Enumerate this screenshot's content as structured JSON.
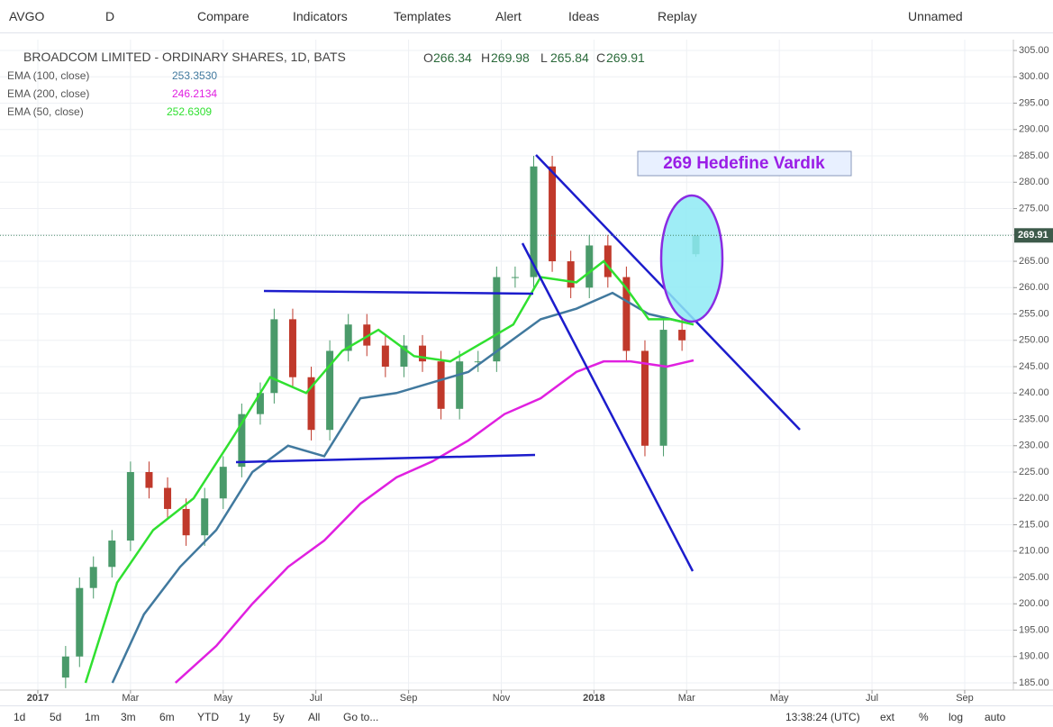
{
  "toolbar": {
    "symbol": "AVGO",
    "interval": "D",
    "items": [
      "Compare",
      "Indicators",
      "Templates",
      "Alert",
      "Ideas",
      "Replay"
    ],
    "layout": "Unnamed"
  },
  "legend": {
    "title": "BROADCOM LIMITED - ORDINARY SHARES, 1D, BATS",
    "ohlc": [
      {
        "label": "O",
        "value": "266.34"
      },
      {
        "label": "H",
        "value": "269.98"
      },
      {
        "label": "L",
        "value": "265.84"
      },
      {
        "label": "C",
        "value": "269.91"
      }
    ],
    "indicators": [
      {
        "name": "EMA (100, close)",
        "value": "253.3530",
        "color": "#41799e"
      },
      {
        "name": "EMA (200, close)",
        "value": "246.2134",
        "color": "#e020e0"
      },
      {
        "name": "EMA (50, close)",
        "value": "252.6309",
        "color": "#30e030"
      }
    ]
  },
  "chart_data": {
    "type": "candlestick",
    "x": [
      0.6,
      0.9,
      1.2,
      1.6,
      2.0,
      2.4,
      2.8,
      3.2,
      3.6,
      4.0,
      4.4,
      4.8,
      5.1,
      5.5,
      5.9,
      6.3,
      6.7,
      7.1,
      7.5,
      7.9,
      8.3,
      8.7,
      9.1,
      9.5,
      9.9,
      10.3,
      10.7,
      11.1,
      11.5,
      11.9,
      12.3,
      12.7,
      13.1,
      13.5,
      13.9,
      14.2
    ],
    "open": [
      186,
      190,
      203,
      207,
      212,
      225,
      222,
      218,
      213,
      220,
      226,
      236,
      240,
      254,
      243,
      233,
      248,
      253,
      249,
      245,
      249,
      246,
      237,
      246,
      246,
      262,
      262,
      283,
      265,
      260,
      268,
      262,
      248,
      230,
      252,
      266.34
    ],
    "high": [
      192,
      205,
      209,
      214,
      227,
      227,
      224,
      220,
      222,
      228,
      238,
      242,
      256,
      256,
      245,
      250,
      255,
      255,
      251,
      251,
      251,
      248,
      248,
      248,
      264,
      264,
      285,
      285,
      267,
      270,
      270,
      264,
      250,
      254,
      254,
      269.98
    ],
    "low": [
      184,
      188,
      201,
      205,
      210,
      220,
      216,
      211,
      211,
      218,
      224,
      234,
      238,
      241,
      231,
      231,
      246,
      247,
      243,
      243,
      244,
      235,
      235,
      244,
      244,
      260,
      260,
      263,
      258,
      258,
      260,
      246,
      228,
      228,
      248,
      265.84
    ],
    "close": [
      190,
      203,
      207,
      212,
      225,
      222,
      218,
      213,
      220,
      226,
      236,
      240,
      254,
      243,
      233,
      248,
      253,
      249,
      245,
      249,
      246,
      237,
      246,
      246,
      262,
      262,
      283,
      265,
      260,
      268,
      262,
      248,
      230,
      252,
      250,
      269.91
    ],
    "up_color": "#4a9a6a",
    "down_color": "#c0392b",
    "series": [
      {
        "name": "EMA (100, close)",
        "color": "#41799e",
        "x": [
          1.61,
          2.29,
          3.07,
          3.85,
          4.63,
          5.4,
          6.18,
          6.96,
          7.74,
          8.51,
          9.29,
          10.07,
          10.85,
          11.62,
          12.4,
          13.18,
          13.96
        ],
        "values": [
          185,
          198,
          207,
          214,
          225,
          230,
          228,
          239,
          240,
          242,
          244,
          249,
          254,
          256,
          259,
          255,
          253.4
        ]
      },
      {
        "name": "EMA (200, close)",
        "color": "#e020e0",
        "x": [
          2.97,
          3.85,
          4.63,
          5.4,
          6.18,
          6.96,
          7.74,
          8.51,
          9.29,
          10.07,
          10.85,
          11.62,
          12.21,
          12.79,
          13.57,
          14.15
        ],
        "values": [
          185,
          192,
          200,
          207,
          212,
          219,
          224,
          227,
          231,
          236,
          239,
          244,
          246,
          246,
          245,
          246.2
        ]
      },
      {
        "name": "EMA (50, close)",
        "color": "#30e030",
        "x": [
          1.03,
          1.71,
          2.49,
          3.36,
          4.24,
          5.01,
          5.79,
          6.57,
          7.35,
          8.12,
          8.9,
          9.68,
          10.26,
          10.85,
          11.62,
          12.21,
          12.69,
          13.18,
          13.66,
          14.15
        ],
        "values": [
          185,
          204,
          214,
          220,
          232,
          243,
          240,
          248,
          252,
          247,
          246,
          250,
          253,
          262,
          261,
          265,
          260,
          254,
          254,
          253
        ]
      }
    ],
    "xlim": [
      -0.816,
      21.05
    ],
    "xticks": [
      {
        "value": 0,
        "label": "2017"
      },
      {
        "value": 2,
        "label": "Mar"
      },
      {
        "value": 4,
        "label": "May"
      },
      {
        "value": 6,
        "label": "Jul"
      },
      {
        "value": 8,
        "label": "Sep"
      },
      {
        "value": 10,
        "label": "Nov"
      },
      {
        "value": 12,
        "label": "2018"
      },
      {
        "value": 14,
        "label": "Mar"
      },
      {
        "value": 16,
        "label": "May"
      },
      {
        "value": 18,
        "label": "Jul"
      },
      {
        "value": 20,
        "label": "Sep"
      }
    ],
    "ylim": [
      183.63,
      307.06
    ],
    "yticks": [
      {
        "value": 185,
        "label": "185.00"
      },
      {
        "value": 190,
        "label": "190.00"
      },
      {
        "value": 195,
        "label": "195.00"
      },
      {
        "value": 200,
        "label": "200.00"
      },
      {
        "value": 205,
        "label": "205.00"
      },
      {
        "value": 210,
        "label": "210.00"
      },
      {
        "value": 215,
        "label": "215.00"
      },
      {
        "value": 220,
        "label": "220.00"
      },
      {
        "value": 225,
        "label": "225.00"
      },
      {
        "value": 230,
        "label": "230.00"
      },
      {
        "value": 235,
        "label": "235.00"
      },
      {
        "value": 240,
        "label": "240.00"
      },
      {
        "value": 245,
        "label": "245.00"
      },
      {
        "value": 250,
        "label": "250.00"
      },
      {
        "value": 255,
        "label": "255.00"
      },
      {
        "value": 260,
        "label": "260.00"
      },
      {
        "value": 265,
        "label": "265.00"
      },
      {
        "value": 270,
        "label": "270.00"
      },
      {
        "value": 275,
        "label": "275.00"
      },
      {
        "value": 280,
        "label": "280.00"
      },
      {
        "value": 285,
        "label": "285.00"
      },
      {
        "value": 290,
        "label": "290.00"
      },
      {
        "value": 295,
        "label": "295.00"
      },
      {
        "value": 300,
        "label": "300.00"
      },
      {
        "value": 305,
        "label": "305.00"
      }
    ],
    "grid": true,
    "last_price": {
      "value": 269.91,
      "label": "269.91"
    },
    "annotation": "269 Hedefine Vardık"
  },
  "bottom_bar": {
    "ranges": [
      "1d",
      "5d",
      "1m",
      "3m",
      "6m",
      "YTD",
      "1y",
      "5y",
      "All"
    ],
    "goto": "Go to...",
    "time": "13:38:24 (UTC)",
    "options": [
      "ext",
      "%",
      "log",
      "auto"
    ]
  }
}
